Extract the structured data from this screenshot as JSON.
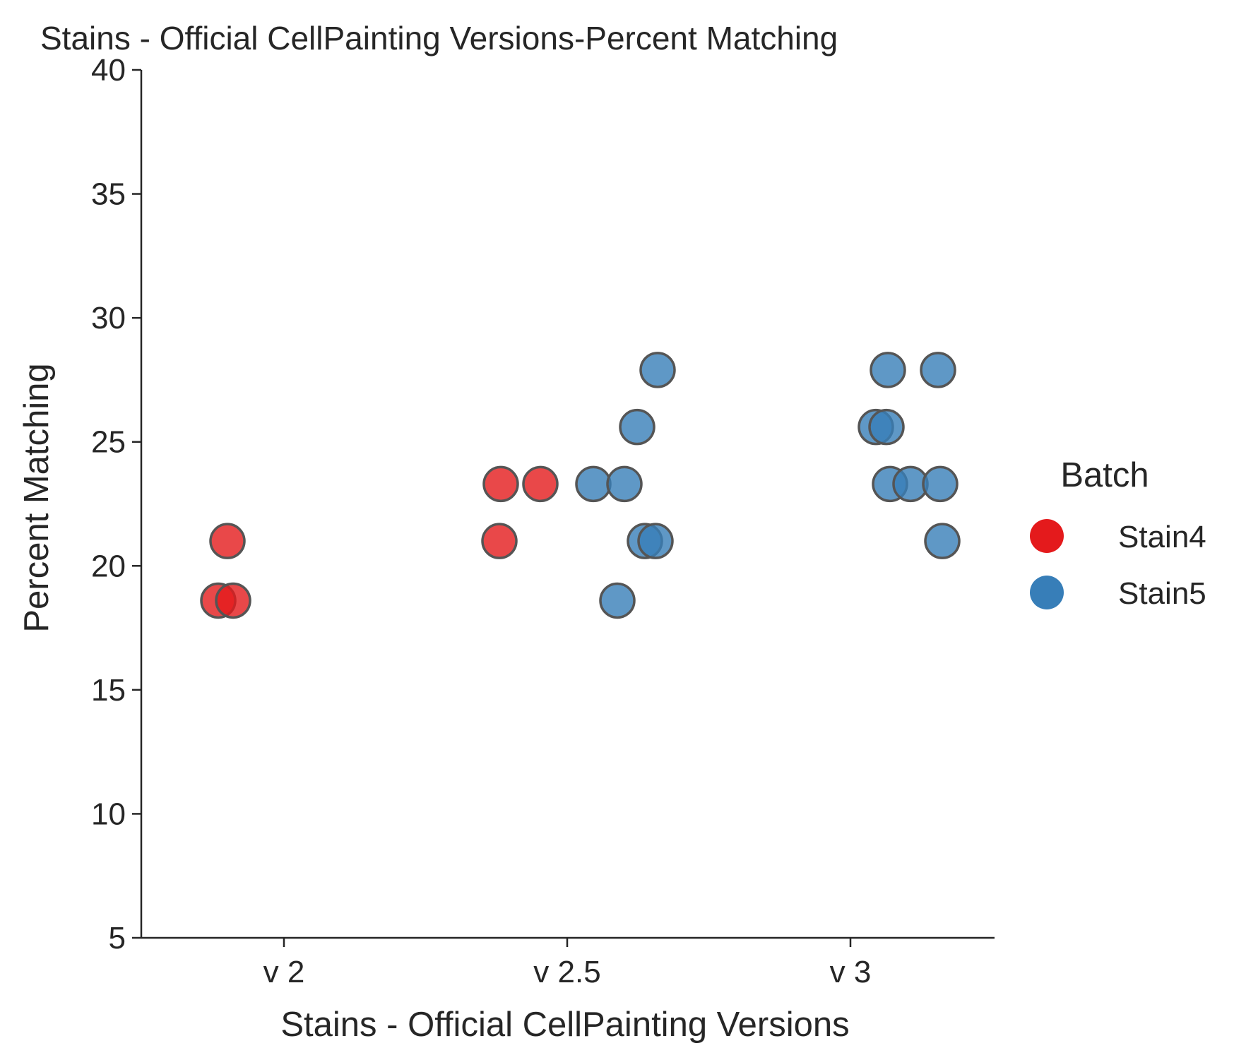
{
  "chart_data": {
    "type": "scatter",
    "title": "Stains - Official CellPainting Versions-Percent Matching",
    "xlabel": "Stains - Official CellPainting Versions",
    "ylabel": "Percent Matching",
    "categories": [
      "v 2",
      "v 2.5",
      "v 3"
    ],
    "ylim": [
      5,
      40
    ],
    "yticks": [
      5,
      10,
      15,
      20,
      25,
      30,
      35,
      40
    ],
    "grid": false,
    "legend": {
      "title": "Batch",
      "placement": "right"
    },
    "series": [
      {
        "name": "Stain4",
        "color": "#e41a1c",
        "points": [
          {
            "x": "v 2",
            "y": 21.0
          },
          {
            "x": "v 2",
            "y": 18.6
          },
          {
            "x": "v 2",
            "y": 18.6
          },
          {
            "x": "v 2.5",
            "y": 23.3
          },
          {
            "x": "v 2.5",
            "y": 23.3
          },
          {
            "x": "v 2.5",
            "y": 21.0
          }
        ]
      },
      {
        "name": "Stain5",
        "color": "#377eb8",
        "points": [
          {
            "x": "v 2.5",
            "y": 23.3
          },
          {
            "x": "v 2.5",
            "y": 23.3
          },
          {
            "x": "v 2.5",
            "y": 18.6
          },
          {
            "x": "v 2.5",
            "y": 21.0
          },
          {
            "x": "v 2.5",
            "y": 21.0
          },
          {
            "x": "v 2.5",
            "y": 25.6
          },
          {
            "x": "v 2.5",
            "y": 27.9
          },
          {
            "x": "v 3",
            "y": 27.9
          },
          {
            "x": "v 3",
            "y": 27.9
          },
          {
            "x": "v 3",
            "y": 25.6
          },
          {
            "x": "v 3",
            "y": 25.6
          },
          {
            "x": "v 3",
            "y": 23.3
          },
          {
            "x": "v 3",
            "y": 23.3
          },
          {
            "x": "v 3",
            "y": 23.3
          },
          {
            "x": "v 3",
            "y": 21.0
          }
        ]
      }
    ]
  }
}
